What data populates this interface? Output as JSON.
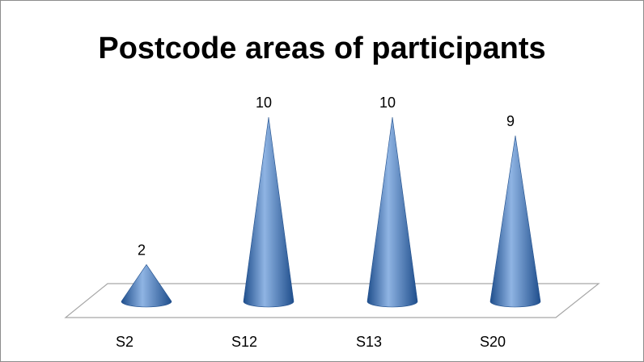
{
  "chart_data": {
    "type": "bar",
    "style": "3d-cone",
    "title": "Postcode areas of participants",
    "categories": [
      "S2",
      "S12",
      "S13",
      "S20"
    ],
    "values": [
      2,
      10,
      10,
      9
    ],
    "ylim": [
      0,
      10
    ],
    "grid": false,
    "legend": "none",
    "colors": {
      "cone_dark": "#1f4e8c",
      "cone_mid": "#4f86c6",
      "cone_light": "#8fb4e3",
      "floor_stroke": "#a6a6a6",
      "frame": "#8c8c8c"
    }
  }
}
